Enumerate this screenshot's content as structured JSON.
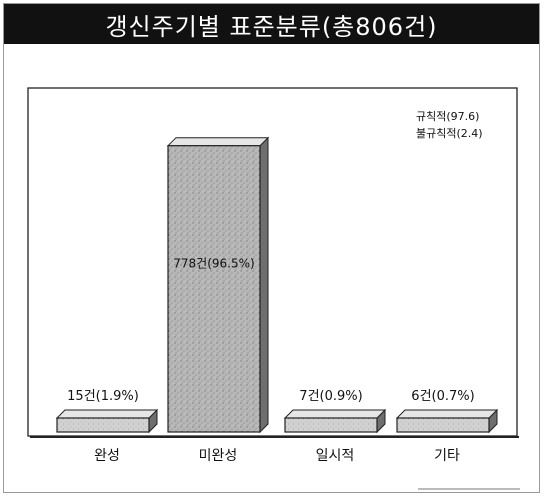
{
  "title": "갱신주기별  표준분류(총806건)",
  "legend": [
    "규칙적(97.6)",
    "불규칙적(2.4)"
  ],
  "chart_data": {
    "type": "bar",
    "title": "갱신주기별  표준분류(총806건)",
    "categories": [
      "완성",
      "미완성",
      "일시적",
      "기타"
    ],
    "values": [
      15,
      778,
      7,
      6
    ],
    "data_labels": [
      "15건(1.9%)",
      "778건(96.5%)",
      "7건(0.9%)",
      "6건(0.7%)"
    ],
    "annotations": [
      "규칙적(97.6)",
      "불규칙적(2.4)"
    ],
    "xlabel": "",
    "ylabel": "",
    "ylim": [
      0,
      800
    ],
    "grid": false,
    "colors": {
      "bar_fill": "#c9c9c9",
      "bar_tall_fill": "#9e9e9e",
      "bar_side": "#6e6e6e",
      "bar_top": "#e6e6e6",
      "stroke": "#222222"
    }
  }
}
